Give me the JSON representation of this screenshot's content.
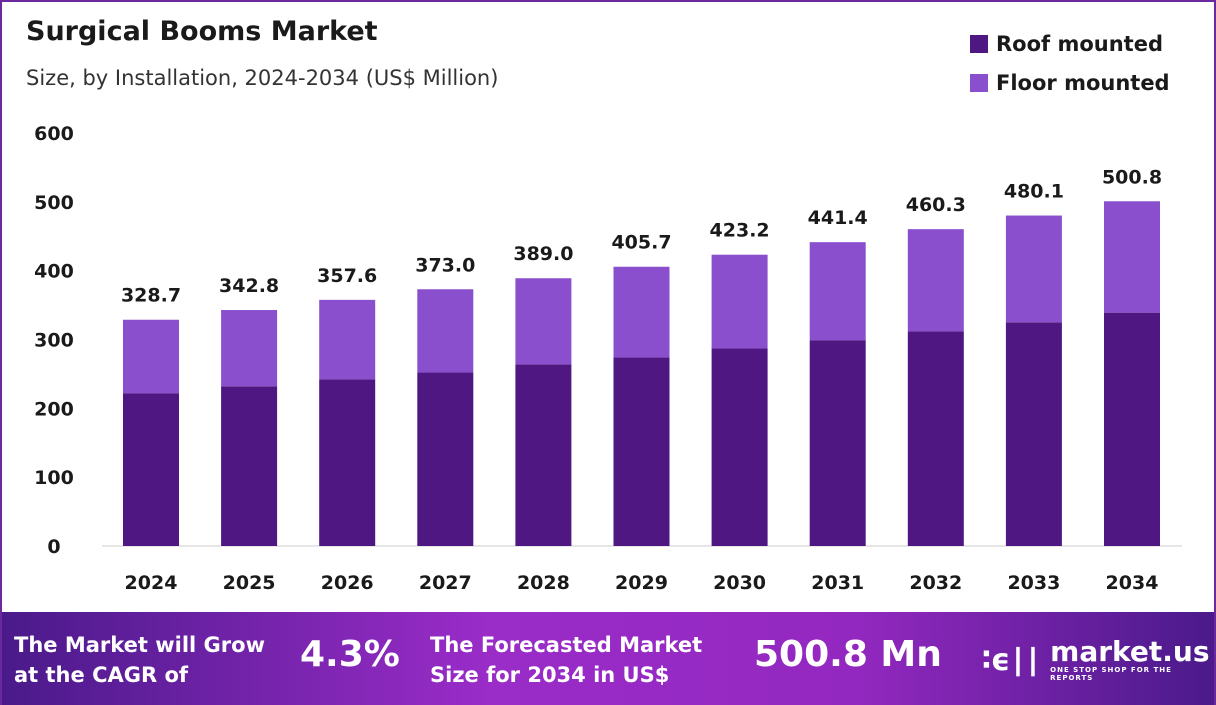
{
  "chart_data": {
    "type": "bar",
    "stacked": true,
    "title": "Surgical Booms Market",
    "subtitle": "Size, by Installation, 2024-2034 (US$ Million)",
    "categories": [
      "2024",
      "2025",
      "2026",
      "2027",
      "2028",
      "2029",
      "2030",
      "2031",
      "2032",
      "2033",
      "2034"
    ],
    "series": [
      {
        "name": "Roof mounted",
        "color": "#4e1781",
        "values": [
          222,
          232,
          242,
          252,
          264,
          274,
          287,
          299,
          312,
          325,
          339
        ]
      },
      {
        "name": "Floor mounted",
        "color": "#8a4fcc",
        "values": [
          106.7,
          110.8,
          115.6,
          121.0,
          125.0,
          131.7,
          136.2,
          142.4,
          148.3,
          155.1,
          161.8
        ]
      }
    ],
    "totals": [
      "328.7",
      "342.8",
      "357.6",
      "373.0",
      "389.0",
      "405.7",
      "423.2",
      "441.4",
      "460.3",
      "480.1",
      "500.8"
    ],
    "yticks": [
      0,
      100,
      200,
      300,
      400,
      500,
      600
    ],
    "ylim": [
      0,
      600
    ],
    "grid": false,
    "legend": "top-right"
  },
  "footer": {
    "cagr_label_1": "The Market will Grow",
    "cagr_label_2": "at the CAGR of",
    "cagr_value": "4.3%",
    "forecast_label_1": "The Forecasted Market",
    "forecast_label_2": "Size for 2034 in US$",
    "forecast_value": "500.8 Mn",
    "logo_name": "market.us",
    "logo_tagline": "ONE STOP SHOP FOR THE REPORTS"
  }
}
